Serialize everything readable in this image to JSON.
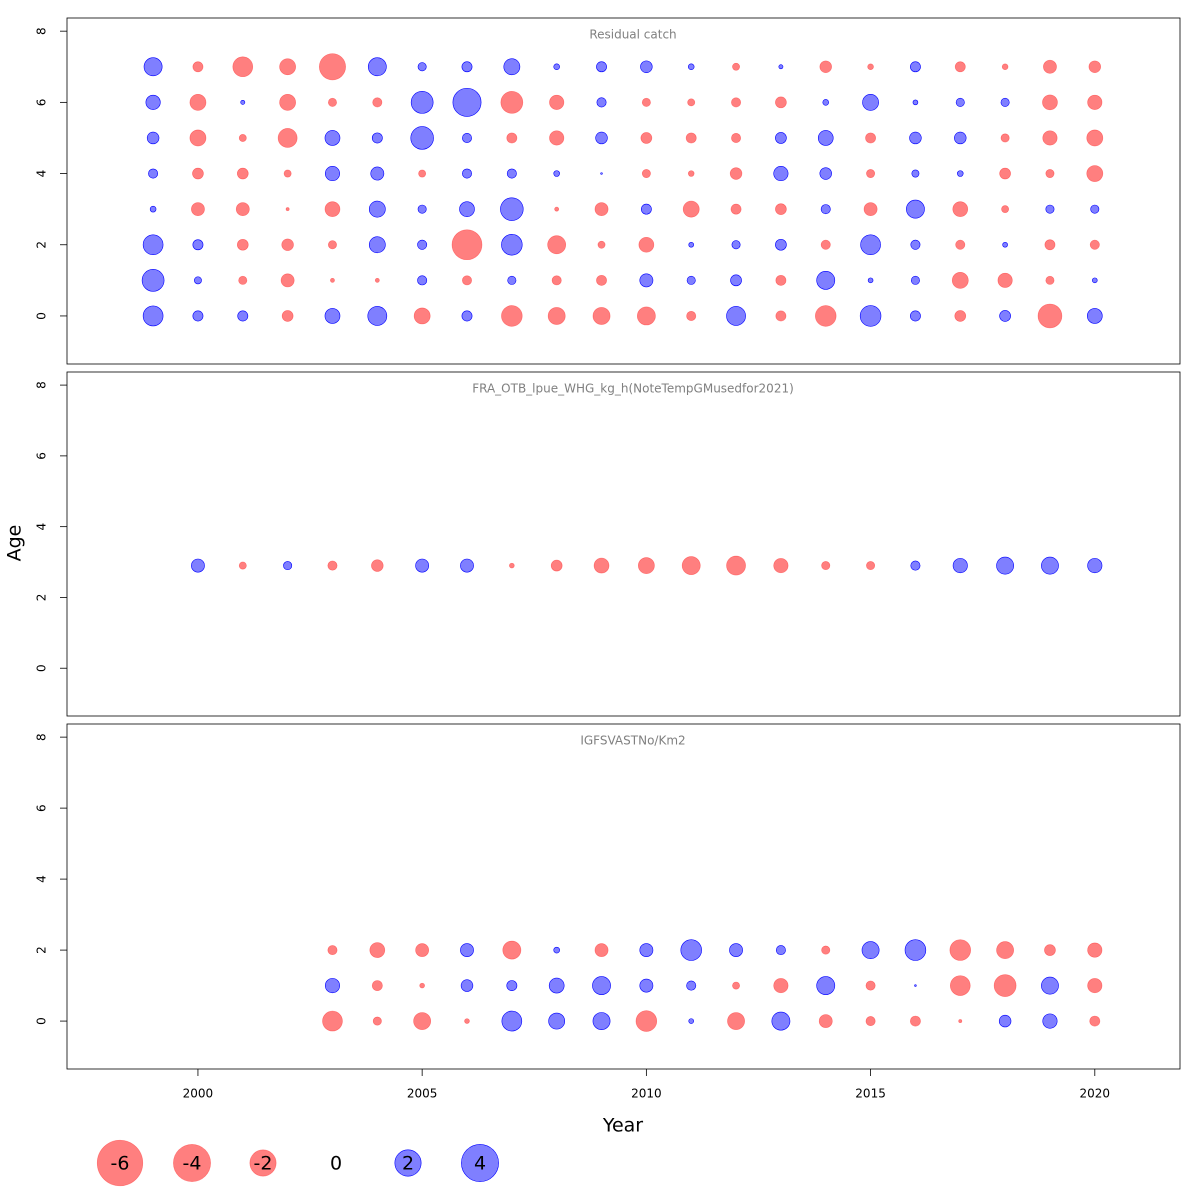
{
  "chart_data": {
    "type": "bubble",
    "xlabel": "Year",
    "ylabel": "Age",
    "xlim": [
      1997.08,
      2021.9
    ],
    "xticks": [
      2000,
      2005,
      2010,
      2015,
      2020
    ],
    "positive_color": "#0000ff",
    "negative_color": "#ff0000",
    "legend": [
      -6,
      -4,
      -2,
      0,
      2,
      4
    ],
    "panels": [
      {
        "title": "Residual catch",
        "ylim": [
          -1.35,
          8.37
        ],
        "yticks": [
          0,
          2,
          4,
          6,
          8
        ],
        "years": [
          1999,
          2000,
          2001,
          2002,
          2003,
          2004,
          2005,
          2006,
          2007,
          2008,
          2009,
          2010,
          2011,
          2012,
          2013,
          2014,
          2015,
          2016,
          2017,
          2018,
          2019,
          2020
        ],
        "ages": [
          0,
          1,
          2,
          3,
          4,
          5,
          6,
          7
        ],
        "residuals": [
          [
            1.15,
            0.3,
            0.3,
            -0.35,
            0.65,
            1.05,
            -0.75,
            0.3,
            -1.25,
            -0.85,
            -0.85,
            -0.95,
            -0.25,
            1.05,
            -0.3,
            -1.25,
            1.25,
            0.3,
            -0.35,
            0.35,
            -1.65,
            0.65
          ],
          [
            1.4,
            0.15,
            -0.2,
            -0.5,
            -0.05,
            -0.05,
            0.25,
            -0.25,
            0.2,
            -0.25,
            -0.3,
            0.5,
            0.2,
            0.35,
            -0.3,
            0.95,
            0.07,
            0.2,
            -0.75,
            -0.6,
            -0.2,
            0.07
          ],
          [
            1.15,
            0.3,
            -0.35,
            -0.4,
            -0.2,
            0.75,
            0.25,
            -2.6,
            1.25,
            -0.95,
            -0.15,
            -0.65,
            0.07,
            0.2,
            0.35,
            -0.25,
            1.15,
            0.25,
            -0.25,
            0.07,
            -0.3,
            -0.25
          ],
          [
            0.1,
            -0.5,
            -0.5,
            -0.03,
            -0.65,
            0.75,
            0.2,
            0.65,
            1.5,
            -0.05,
            -0.5,
            0.3,
            -0.75,
            -0.3,
            -0.35,
            0.25,
            -0.5,
            0.95,
            -0.65,
            -0.15,
            0.2,
            0.2
          ],
          [
            0.25,
            -0.35,
            -0.35,
            -0.15,
            0.6,
            0.5,
            -0.15,
            0.25,
            0.25,
            0.1,
            0.01,
            -0.2,
            -0.1,
            -0.4,
            0.6,
            0.4,
            -0.2,
            0.15,
            0.1,
            -0.35,
            -0.2,
            -0.75
          ],
          [
            0.4,
            -0.75,
            -0.15,
            -1.05,
            0.65,
            0.3,
            1.5,
            0.25,
            -0.3,
            -0.6,
            0.4,
            -0.35,
            -0.3,
            -0.25,
            0.35,
            0.65,
            -0.3,
            0.4,
            0.4,
            -0.2,
            -0.6,
            -0.75
          ],
          [
            0.6,
            -0.75,
            0.05,
            -0.75,
            -0.2,
            -0.25,
            1.4,
            2.3,
            -1.4,
            -0.6,
            0.25,
            -0.2,
            -0.15,
            -0.25,
            -0.35,
            0.1,
            0.75,
            0.07,
            0.2,
            0.2,
            -0.65,
            -0.6
          ],
          [
            0.95,
            -0.3,
            -1.15,
            -0.75,
            -2.0,
            0.95,
            0.2,
            0.3,
            0.75,
            0.1,
            0.3,
            0.4,
            0.1,
            -0.15,
            0.05,
            -0.4,
            -0.1,
            0.3,
            -0.3,
            -0.1,
            -0.5,
            -0.4
          ]
        ]
      },
      {
        "title": "FRA_OTB_lpue_WHG_kg_h(NoteTempGMusedfor2021)",
        "ylim": [
          -1.35,
          8.37
        ],
        "yticks": [
          0,
          2,
          4,
          6,
          8
        ],
        "years": [
          2000,
          2001,
          2002,
          2003,
          2004,
          2005,
          2006,
          2007,
          2008,
          2009,
          2010,
          2011,
          2012,
          2013,
          2014,
          2015,
          2016,
          2017,
          2018,
          2019,
          2020
        ],
        "ages": [
          2.9
        ],
        "residuals": [
          [
            0.5,
            -0.15,
            0.2,
            -0.25,
            -0.4,
            0.5,
            0.5,
            -0.07,
            -0.35,
            -0.65,
            -0.75,
            -0.95,
            -1.05,
            -0.6,
            -0.2,
            -0.2,
            0.25,
            0.6,
            0.85,
            0.85,
            0.6
          ]
        ]
      },
      {
        "title": "IGFSVASTNo/Km2",
        "ylim": [
          -1.35,
          8.37
        ],
        "yticks": [
          0,
          2,
          4,
          6,
          8
        ],
        "years": [
          2003,
          2004,
          2005,
          2006,
          2007,
          2008,
          2009,
          2010,
          2011,
          2012,
          2013,
          2014,
          2015,
          2016,
          2017,
          2018,
          2019,
          2020
        ],
        "ages": [
          0,
          1,
          2
        ],
        "residuals": [
          [
            -1.15,
            -0.2,
            -0.85,
            -0.07,
            1.15,
            0.75,
            0.85,
            -1.25,
            0.07,
            -0.85,
            0.95,
            -0.5,
            -0.25,
            -0.3,
            -0.03,
            0.4,
            0.6,
            -0.3
          ],
          [
            0.6,
            -0.3,
            -0.07,
            0.4,
            0.3,
            0.65,
            0.95,
            0.5,
            0.25,
            -0.15,
            -0.6,
            0.95,
            -0.25,
            0.01,
            -1.15,
            -1.4,
            0.85,
            -0.6
          ],
          [
            -0.25,
            -0.65,
            -0.5,
            0.5,
            -0.95,
            0.1,
            -0.5,
            0.5,
            1.25,
            0.5,
            0.25,
            -0.2,
            0.85,
            1.25,
            -1.25,
            -0.85,
            -0.35,
            -0.6
          ]
        ]
      }
    ]
  }
}
